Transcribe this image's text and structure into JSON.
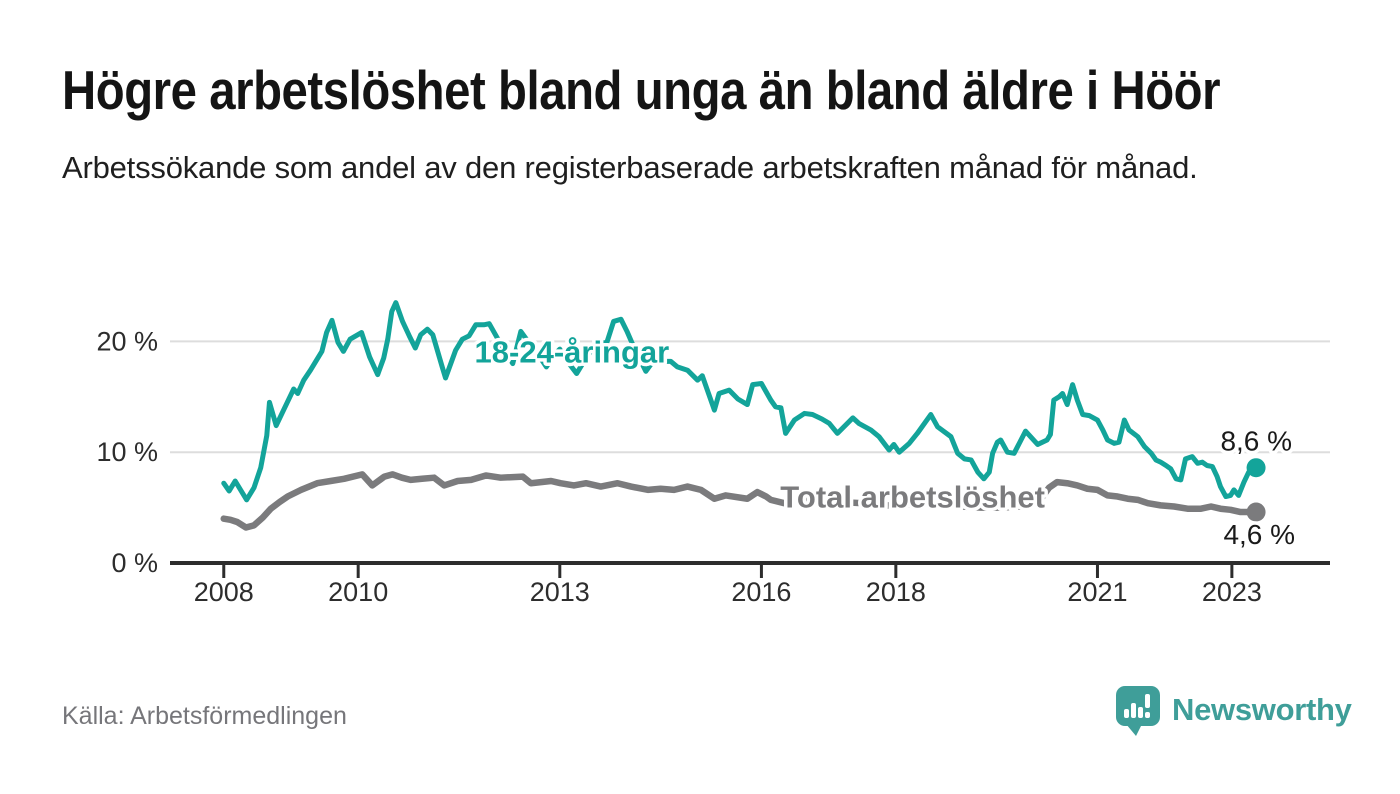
{
  "header": {
    "title": "Högre arbetslöshet bland unga än bland äldre i Höör",
    "subtitle": "Arbetssökande som andel av den registerbaserade arbetskraften månad för månad."
  },
  "source": {
    "label": "Källa: Arbetsförmedlingen"
  },
  "brand": {
    "name": "Newsworthy",
    "logo_icon": "speech-bubble-bar-chart-icon",
    "color": "#3f9e99"
  },
  "colors": {
    "background": "#ffffff",
    "title_text": "#141414",
    "axis": "#2d2d2d",
    "tick_text": "#2d2d2d",
    "grid": "#dddddd",
    "youth_line": "#13a49a",
    "total_line": "#7b7b7d",
    "end_label_text": "#1a1a1a",
    "source_text": "#76767a"
  },
  "chart_data": {
    "type": "line",
    "title": "Högre arbetslöshet bland unga än bland äldre i Höör",
    "x_unit": "year (monthly data points)",
    "y_unit": "percent of registered labour force",
    "xlim": [
      2007.2,
      2024.46
    ],
    "ylim": [
      0,
      25
    ],
    "grid_on": true,
    "grid_values": [
      10,
      20
    ],
    "y_ticks": [
      {
        "value": 0,
        "label": "0 %"
      },
      {
        "value": 10,
        "label": "10 %"
      },
      {
        "value": 20,
        "label": "20 %"
      }
    ],
    "x_ticks": [
      {
        "value": 2008,
        "label": "2008"
      },
      {
        "value": 2010,
        "label": "2010"
      },
      {
        "value": 2013,
        "label": "2013"
      },
      {
        "value": 2016,
        "label": "2016"
      },
      {
        "value": 2018,
        "label": "2018"
      },
      {
        "value": 2021,
        "label": "2021"
      },
      {
        "value": 2023,
        "label": "2023"
      }
    ],
    "series": [
      {
        "name": "18-24-åringar",
        "color": "#13a49a",
        "label": {
          "text": "18-24-åringar",
          "x": 2013.18,
          "y": 19.1
        },
        "end_label": {
          "text": "8,6 %"
        },
        "end_value": 8.6,
        "points": [
          [
            2008.0,
            7.2
          ],
          [
            2008.08,
            6.5
          ],
          [
            2008.17,
            7.4
          ],
          [
            2008.25,
            6.6
          ],
          [
            2008.34,
            5.7
          ],
          [
            2008.45,
            6.8
          ],
          [
            2008.55,
            8.6
          ],
          [
            2008.64,
            11.5
          ],
          [
            2008.68,
            14.5
          ],
          [
            2008.78,
            12.4
          ],
          [
            2008.89,
            13.8
          ],
          [
            2009.04,
            15.7
          ],
          [
            2009.1,
            15.3
          ],
          [
            2009.19,
            16.5
          ],
          [
            2009.29,
            17.4
          ],
          [
            2009.37,
            18.2
          ],
          [
            2009.46,
            19.1
          ],
          [
            2009.53,
            20.8
          ],
          [
            2009.61,
            21.9
          ],
          [
            2009.7,
            19.9
          ],
          [
            2009.78,
            19.1
          ],
          [
            2009.88,
            20.2
          ],
          [
            2010.05,
            20.8
          ],
          [
            2010.17,
            18.6
          ],
          [
            2010.29,
            17.0
          ],
          [
            2010.38,
            18.5
          ],
          [
            2010.44,
            20.2
          ],
          [
            2010.5,
            22.7
          ],
          [
            2010.56,
            23.5
          ],
          [
            2010.66,
            21.8
          ],
          [
            2010.76,
            20.5
          ],
          [
            2010.85,
            19.4
          ],
          [
            2010.93,
            20.6
          ],
          [
            2011.03,
            21.1
          ],
          [
            2011.11,
            20.6
          ],
          [
            2011.25,
            17.7
          ],
          [
            2011.3,
            16.7
          ],
          [
            2011.45,
            19.2
          ],
          [
            2011.55,
            20.2
          ],
          [
            2011.65,
            20.5
          ],
          [
            2011.75,
            21.5
          ],
          [
            2011.87,
            21.5
          ],
          [
            2011.95,
            21.6
          ],
          [
            2012.08,
            20.2
          ],
          [
            2012.2,
            19.0
          ],
          [
            2012.3,
            18.0
          ],
          [
            2012.42,
            20.9
          ],
          [
            2012.55,
            19.8
          ],
          [
            2012.68,
            18.8
          ],
          [
            2012.8,
            17.7
          ],
          [
            2012.92,
            18.8
          ],
          [
            2013.0,
            19.3
          ],
          [
            2013.1,
            18.3
          ],
          [
            2013.25,
            17.1
          ],
          [
            2013.4,
            18.6
          ],
          [
            2013.55,
            19.8
          ],
          [
            2013.7,
            19.9
          ],
          [
            2013.8,
            21.8
          ],
          [
            2013.91,
            22.0
          ],
          [
            2014.0,
            20.9
          ],
          [
            2014.1,
            19.5
          ],
          [
            2014.28,
            17.3
          ],
          [
            2014.4,
            18.3
          ],
          [
            2014.55,
            18.2
          ],
          [
            2014.65,
            18.2
          ],
          [
            2014.75,
            17.7
          ],
          [
            2014.9,
            17.4
          ],
          [
            2015.05,
            16.5
          ],
          [
            2015.12,
            16.9
          ],
          [
            2015.3,
            13.8
          ],
          [
            2015.37,
            15.3
          ],
          [
            2015.52,
            15.6
          ],
          [
            2015.65,
            14.8
          ],
          [
            2015.79,
            14.3
          ],
          [
            2015.87,
            16.1
          ],
          [
            2016.0,
            16.2
          ],
          [
            2016.14,
            14.7
          ],
          [
            2016.21,
            14.1
          ],
          [
            2016.29,
            14.0
          ],
          [
            2016.36,
            11.7
          ],
          [
            2016.49,
            12.9
          ],
          [
            2016.64,
            13.5
          ],
          [
            2016.76,
            13.4
          ],
          [
            2016.9,
            13.0
          ],
          [
            2017.01,
            12.6
          ],
          [
            2017.13,
            11.7
          ],
          [
            2017.36,
            13.1
          ],
          [
            2017.45,
            12.6
          ],
          [
            2017.63,
            12.0
          ],
          [
            2017.75,
            11.4
          ],
          [
            2017.9,
            10.2
          ],
          [
            2017.97,
            10.7
          ],
          [
            2018.05,
            10.0
          ],
          [
            2018.2,
            10.8
          ],
          [
            2018.32,
            11.7
          ],
          [
            2018.52,
            13.4
          ],
          [
            2018.62,
            12.3
          ],
          [
            2018.82,
            11.4
          ],
          [
            2018.92,
            9.9
          ],
          [
            2019.02,
            9.4
          ],
          [
            2019.12,
            9.3
          ],
          [
            2019.22,
            8.2
          ],
          [
            2019.31,
            7.6
          ],
          [
            2019.39,
            8.2
          ],
          [
            2019.44,
            9.9
          ],
          [
            2019.51,
            10.9
          ],
          [
            2019.56,
            11.1
          ],
          [
            2019.66,
            10.0
          ],
          [
            2019.76,
            9.9
          ],
          [
            2019.93,
            11.9
          ],
          [
            2020.11,
            10.7
          ],
          [
            2020.25,
            11.1
          ],
          [
            2020.3,
            11.6
          ],
          [
            2020.35,
            14.7
          ],
          [
            2020.43,
            15.0
          ],
          [
            2020.48,
            15.3
          ],
          [
            2020.55,
            14.3
          ],
          [
            2020.63,
            16.1
          ],
          [
            2020.7,
            14.7
          ],
          [
            2020.78,
            13.4
          ],
          [
            2020.88,
            13.3
          ],
          [
            2021.0,
            12.9
          ],
          [
            2021.08,
            12.0
          ],
          [
            2021.15,
            11.1
          ],
          [
            2021.25,
            10.8
          ],
          [
            2021.32,
            10.9
          ],
          [
            2021.4,
            12.9
          ],
          [
            2021.47,
            12.0
          ],
          [
            2021.6,
            11.4
          ],
          [
            2021.7,
            10.5
          ],
          [
            2021.8,
            9.9
          ],
          [
            2021.87,
            9.3
          ],
          [
            2021.94,
            9.1
          ],
          [
            2022.02,
            8.8
          ],
          [
            2022.09,
            8.5
          ],
          [
            2022.17,
            7.6
          ],
          [
            2022.24,
            7.5
          ],
          [
            2022.31,
            9.4
          ],
          [
            2022.41,
            9.6
          ],
          [
            2022.49,
            9.0
          ],
          [
            2022.56,
            9.1
          ],
          [
            2022.63,
            8.8
          ],
          [
            2022.71,
            8.7
          ],
          [
            2022.78,
            7.8
          ],
          [
            2022.83,
            6.9
          ],
          [
            2022.91,
            6.0
          ],
          [
            2022.98,
            6.1
          ],
          [
            2023.03,
            6.6
          ],
          [
            2023.1,
            6.1
          ],
          [
            2023.18,
            7.3
          ],
          [
            2023.25,
            8.2
          ],
          [
            2023.36,
            8.6
          ]
        ]
      },
      {
        "name": "Total arbetslöshet",
        "color": "#7b7b7d",
        "label": {
          "text": "Total arbetslöshet",
          "x": 2018.25,
          "y": 6.0
        },
        "end_label": {
          "text": "4,6 %"
        },
        "end_value": 4.6,
        "points": [
          [
            2008.0,
            4.0
          ],
          [
            2008.1,
            3.9
          ],
          [
            2008.2,
            3.7
          ],
          [
            2008.33,
            3.2
          ],
          [
            2008.45,
            3.4
          ],
          [
            2008.58,
            4.1
          ],
          [
            2008.7,
            4.9
          ],
          [
            2008.83,
            5.5
          ],
          [
            2008.95,
            6.0
          ],
          [
            2009.15,
            6.6
          ],
          [
            2009.39,
            7.2
          ],
          [
            2009.59,
            7.4
          ],
          [
            2009.79,
            7.6
          ],
          [
            2010.06,
            8.0
          ],
          [
            2010.21,
            7.0
          ],
          [
            2010.39,
            7.8
          ],
          [
            2010.51,
            8.0
          ],
          [
            2010.65,
            7.7
          ],
          [
            2010.78,
            7.5
          ],
          [
            2010.95,
            7.6
          ],
          [
            2011.13,
            7.7
          ],
          [
            2011.28,
            7.0
          ],
          [
            2011.48,
            7.4
          ],
          [
            2011.68,
            7.5
          ],
          [
            2011.9,
            7.9
          ],
          [
            2012.12,
            7.7
          ],
          [
            2012.45,
            7.8
          ],
          [
            2012.57,
            7.2
          ],
          [
            2012.87,
            7.4
          ],
          [
            2013.01,
            7.2
          ],
          [
            2013.21,
            7.0
          ],
          [
            2013.39,
            7.2
          ],
          [
            2013.61,
            6.9
          ],
          [
            2013.86,
            7.2
          ],
          [
            2014.06,
            6.9
          ],
          [
            2014.31,
            6.6
          ],
          [
            2014.5,
            6.7
          ],
          [
            2014.7,
            6.6
          ],
          [
            2014.9,
            6.9
          ],
          [
            2015.1,
            6.6
          ],
          [
            2015.3,
            5.8
          ],
          [
            2015.47,
            6.1
          ],
          [
            2015.79,
            5.8
          ],
          [
            2015.94,
            6.4
          ],
          [
            2016.07,
            6.0
          ],
          [
            2016.14,
            5.7
          ],
          [
            2016.34,
            5.4
          ],
          [
            2016.64,
            5.8
          ],
          [
            2016.88,
            5.7
          ],
          [
            2017.18,
            5.5
          ],
          [
            2017.48,
            5.4
          ],
          [
            2017.78,
            5.2
          ],
          [
            2018.07,
            5.2
          ],
          [
            2018.37,
            5.4
          ],
          [
            2018.67,
            5.3
          ],
          [
            2018.97,
            5.1
          ],
          [
            2019.27,
            5.0
          ],
          [
            2019.56,
            5.0
          ],
          [
            2019.86,
            5.1
          ],
          [
            2020.16,
            5.8
          ],
          [
            2020.28,
            6.8
          ],
          [
            2020.4,
            7.3
          ],
          [
            2020.55,
            7.2
          ],
          [
            2020.7,
            7.0
          ],
          [
            2020.85,
            6.7
          ],
          [
            2021.0,
            6.6
          ],
          [
            2021.15,
            6.1
          ],
          [
            2021.3,
            6.0
          ],
          [
            2021.45,
            5.8
          ],
          [
            2021.6,
            5.7
          ],
          [
            2021.75,
            5.4
          ],
          [
            2021.94,
            5.2
          ],
          [
            2022.14,
            5.1
          ],
          [
            2022.34,
            4.9
          ],
          [
            2022.54,
            4.9
          ],
          [
            2022.69,
            5.1
          ],
          [
            2022.83,
            4.9
          ],
          [
            2022.98,
            4.8
          ],
          [
            2023.13,
            4.6
          ],
          [
            2023.36,
            4.6
          ]
        ]
      }
    ]
  }
}
